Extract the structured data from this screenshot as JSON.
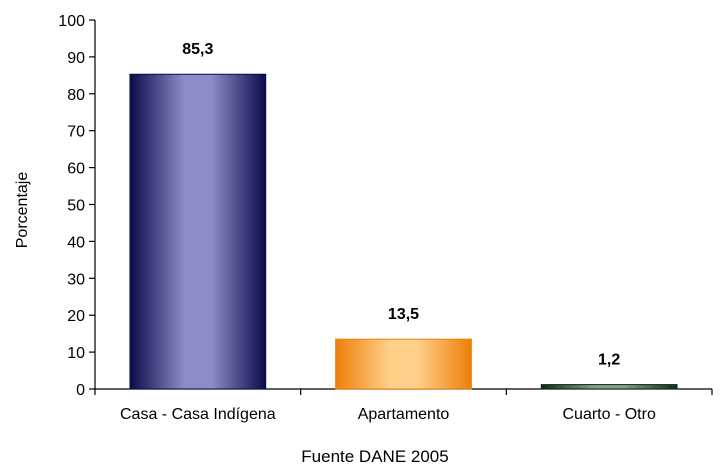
{
  "chart_data": {
    "type": "bar",
    "categories": [
      "Casa - Casa Indígena",
      "Apartamento",
      "Cuarto - Otro"
    ],
    "values": [
      85.3,
      13.5,
      1.2
    ],
    "data_labels": [
      "85,3",
      "13,5",
      "1,2"
    ],
    "title": "",
    "xlabel": "Fuente DANE 2005",
    "ylabel": "Porcentaje",
    "ylim": [
      0,
      100
    ],
    "yticks": [
      0,
      10,
      20,
      30,
      40,
      50,
      60,
      70,
      80,
      90,
      100
    ],
    "ytick_labels": [
      "0",
      "10",
      "20",
      "30",
      "40",
      "50",
      "60",
      "70",
      "80",
      "90",
      "100"
    ],
    "grid": false,
    "legend": "none",
    "colors": {
      "bars": [
        {
          "edge": "#0b0b4a",
          "mid": "#8c8cc8"
        },
        {
          "edge": "#ee7f0a",
          "mid": "#ffd08a"
        },
        {
          "edge": "#0e2e14",
          "mid": "#8a9e8c"
        }
      ],
      "axis": "#000000"
    }
  }
}
